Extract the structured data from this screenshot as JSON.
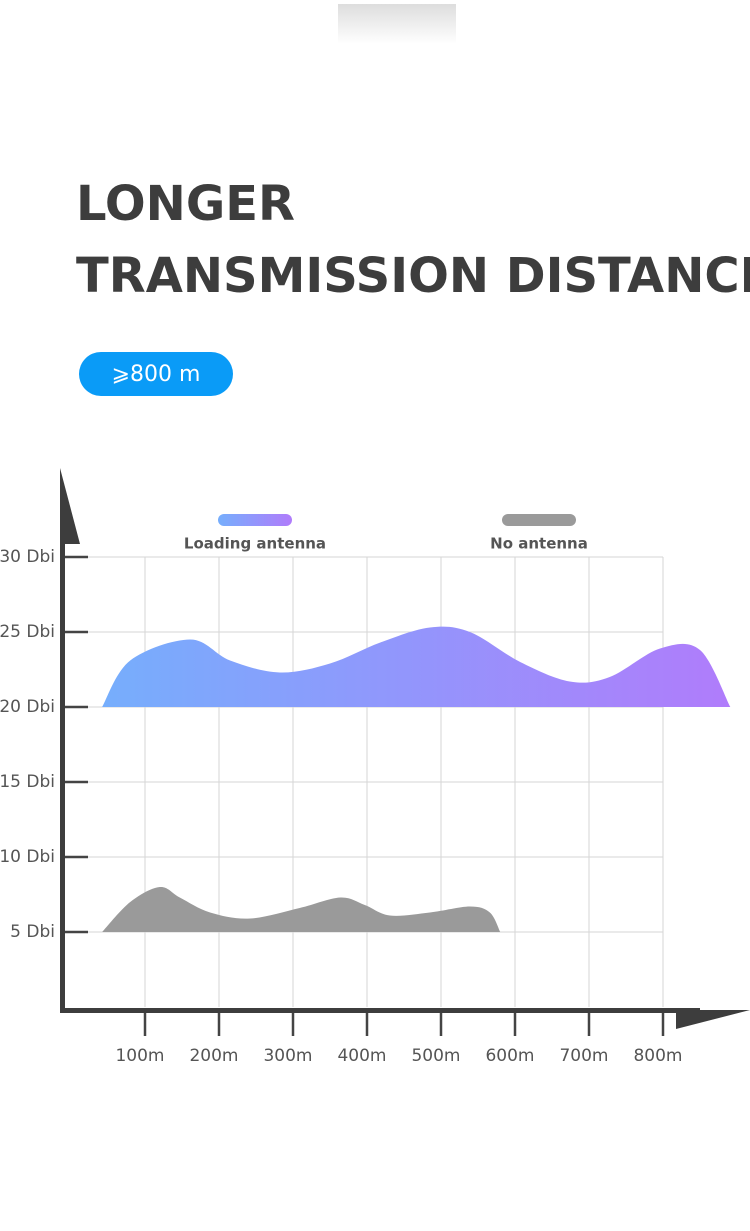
{
  "header": {
    "title_line1": "LONGER",
    "title_line2": "TRANSMISSION DISTANCE",
    "badge": "⩾800 m"
  },
  "chart_data": {
    "type": "area",
    "series": [
      {
        "name": "Loading antenna",
        "color": [
          "#76aefc",
          "#b07cfb"
        ],
        "x": [
          42,
          80,
          161,
          215,
          282,
          350,
          418,
          485,
          539,
          607,
          674,
          728,
          796,
          850,
          891
        ],
        "values": [
          20,
          23.1,
          24.5,
          23.1,
          22.3,
          22.9,
          24.3,
          25.3,
          25,
          23,
          21.7,
          22,
          23.9,
          23.8,
          20
        ]
      },
      {
        "name": "No antenna",
        "color": "#9a9a9a",
        "x": [
          42,
          80,
          120,
          147,
          188,
          242,
          309,
          364,
          397,
          431,
          485,
          539,
          566,
          580
        ],
        "values": [
          5,
          7,
          8,
          7.3,
          6.3,
          5.9,
          6.6,
          7.3,
          6.8,
          6.1,
          6.3,
          6.7,
          6.3,
          5
        ]
      }
    ],
    "xlim": [
      0,
      800
    ],
    "ylim": [
      0,
      30
    ],
    "xticks": [
      {
        "value": 100,
        "label": "100m"
      },
      {
        "value": 200,
        "label": "200m"
      },
      {
        "value": 300,
        "label": "300m"
      },
      {
        "value": 400,
        "label": "400m"
      },
      {
        "value": 500,
        "label": "500m"
      },
      {
        "value": 600,
        "label": "600m"
      },
      {
        "value": 700,
        "label": "700m"
      },
      {
        "value": 800,
        "label": "800m"
      }
    ],
    "yticks": [
      {
        "value": 5,
        "label": "5 Dbi"
      },
      {
        "value": 10,
        "label": "10 Dbi"
      },
      {
        "value": 15,
        "label": "15 Dbi"
      },
      {
        "value": 20,
        "label": "20 Dbi"
      },
      {
        "value": 25,
        "label": "25 Dbi"
      },
      {
        "value": 30,
        "label": "30 Dbi"
      }
    ],
    "grid": true
  }
}
